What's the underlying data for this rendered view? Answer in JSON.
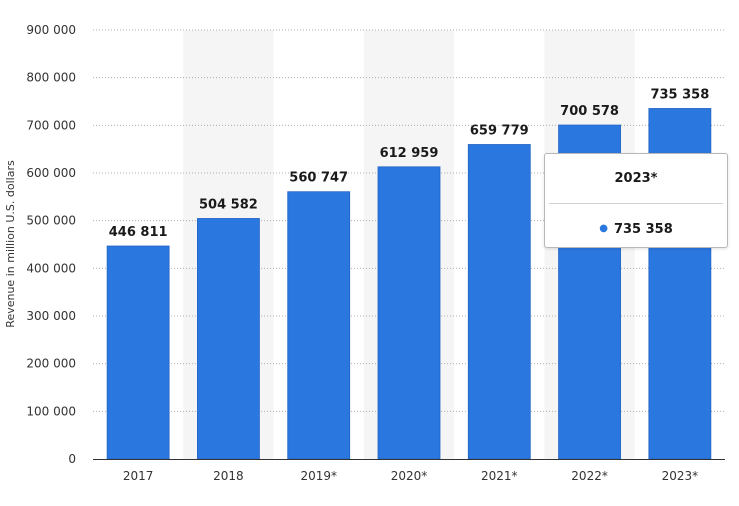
{
  "chart_data": {
    "type": "bar",
    "categories": [
      "2017",
      "2018",
      "2019*",
      "2020*",
      "2021*",
      "2022*",
      "2023*"
    ],
    "values": [
      446811,
      504582,
      560747,
      612959,
      659779,
      700578,
      735358
    ],
    "data_labels": [
      "446 811",
      "504 582",
      "560 747",
      "612 959",
      "659 779",
      "700 578",
      "735 358"
    ],
    "ylabel": "Revenue in million U.S. dollars",
    "ylim": [
      0,
      900000
    ],
    "yticks": [
      0,
      100000,
      200000,
      300000,
      400000,
      500000,
      600000,
      700000,
      800000,
      900000
    ],
    "ytick_labels": [
      "0",
      "100 000",
      "200 000",
      "300 000",
      "400 000",
      "500 000",
      "600 000",
      "700 000",
      "800 000",
      "900 000"
    ],
    "grid": true,
    "bar_color": "#2b77e0",
    "band_color": "#f5f5f5"
  },
  "tooltip": {
    "title": "2023*",
    "value": "735 358"
  }
}
